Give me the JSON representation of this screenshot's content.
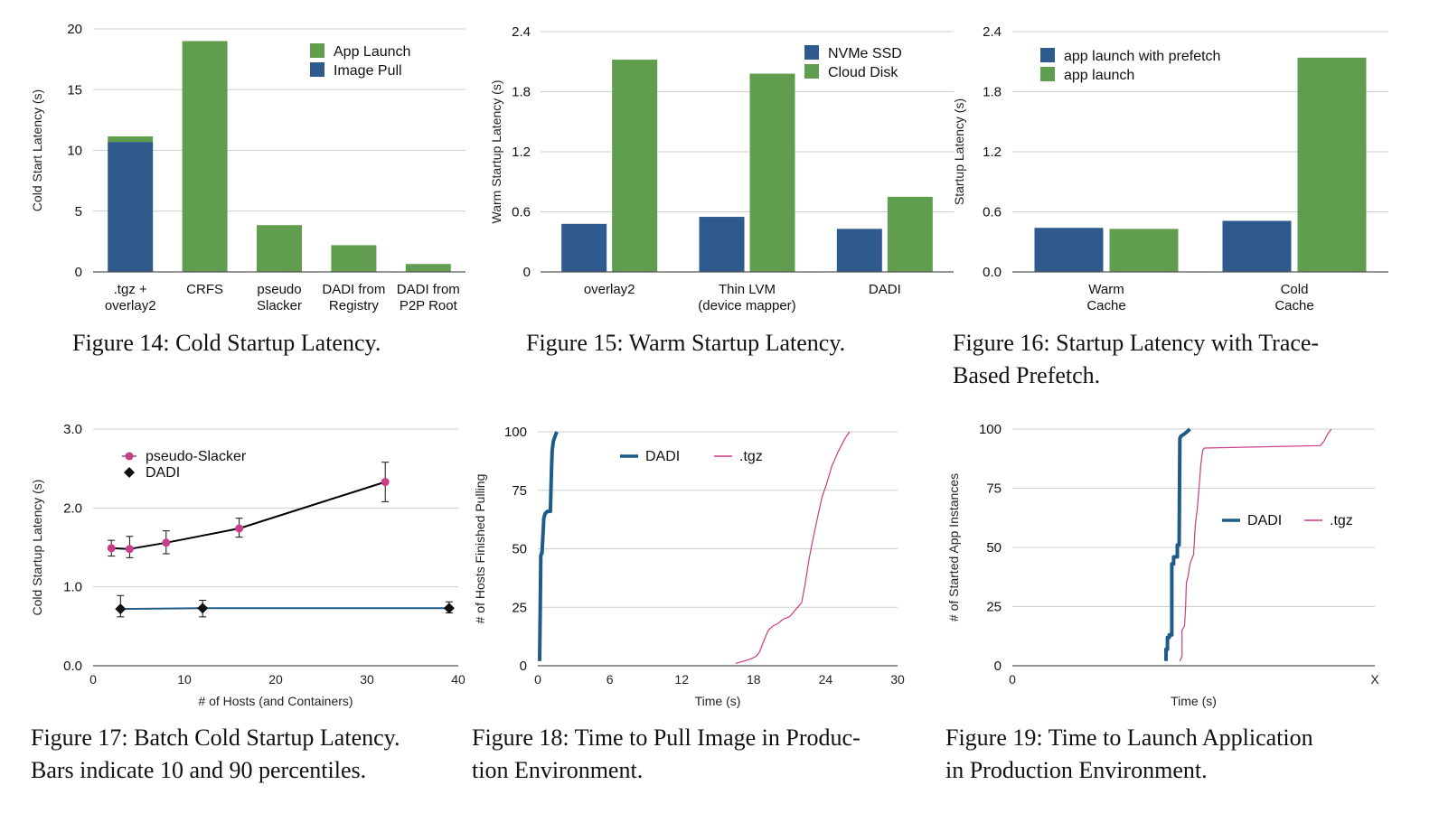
{
  "colors": {
    "blue": "#2f5a8e",
    "green": "#609d4f",
    "dadi_line": "#1e5c87",
    "tgz_line": "#c73e86",
    "slacker_marker": "#c73e86"
  },
  "chart_data": [
    {
      "id": "fig14",
      "type": "bar",
      "stacked": true,
      "caption": "Figure 14: Cold Startup Latency.",
      "ylabel": "Cold Start Latency (s)",
      "xlabel": "",
      "ylim": [
        0,
        20
      ],
      "yticks": [
        "0",
        "5",
        "10",
        "15",
        "20"
      ],
      "categories": [
        ".tgz +\noverlay2",
        "CRFS",
        "pseudo\nSlacker",
        "DADI from\nRegistry",
        "DADI from\nP2P Root"
      ],
      "series": [
        {
          "name": "Image Pull",
          "color": "#2f5a8e",
          "values": [
            10.7,
            0,
            0,
            0,
            0
          ]
        },
        {
          "name": "App Launch",
          "color": "#609d4f",
          "values": [
            0.45,
            19.0,
            3.85,
            2.2,
            0.65
          ]
        }
      ],
      "legend": [
        "App Launch",
        "Image Pull"
      ],
      "legend_position": "top-right"
    },
    {
      "id": "fig15",
      "type": "bar",
      "stacked": false,
      "caption": "Figure 15: Warm Startup Latency.",
      "ylabel": "Warm Startup Latency (s)",
      "xlabel": "",
      "ylim": [
        0,
        2.4
      ],
      "yticks": [
        "0",
        "0.6",
        "1.2",
        "1.8",
        "2.4"
      ],
      "categories": [
        "overlay2",
        "Thin LVM\n(device mapper)",
        "DADI"
      ],
      "series": [
        {
          "name": "NVMe SSD",
          "color": "#2f5a8e",
          "values": [
            0.48,
            0.55,
            0.43
          ]
        },
        {
          "name": "Cloud Disk",
          "color": "#609d4f",
          "values": [
            2.12,
            1.98,
            0.75
          ]
        }
      ],
      "legend": [
        "NVMe SSD",
        "Cloud Disk"
      ],
      "legend_position": "top-right"
    },
    {
      "id": "fig16",
      "type": "bar",
      "stacked": false,
      "caption": "Figure 16: Startup Latency with Trace-\nBased Prefetch.",
      "ylabel": "Startup Latency (s)",
      "xlabel": "",
      "ylim": [
        0,
        2.4
      ],
      "yticks": [
        "0.0",
        "0.6",
        "1.2",
        "1.8",
        "2.4"
      ],
      "categories": [
        "Warm\nCache",
        "Cold\nCache"
      ],
      "series": [
        {
          "name": "app launch with prefetch",
          "color": "#2f5a8e",
          "values": [
            0.44,
            0.51
          ]
        },
        {
          "name": "app launch",
          "color": "#609d4f",
          "values": [
            0.43,
            2.14
          ]
        }
      ],
      "legend": [
        "app launch with prefetch",
        "app launch"
      ],
      "legend_position": "top-left"
    },
    {
      "id": "fig17",
      "type": "line",
      "caption": "Figure 17: Batch Cold Startup Latency.\nBars indicate 10 and 90 percentiles.",
      "ylabel": "Cold Startup Latency (s)",
      "xlabel": "# of Hosts (and Containers)",
      "xlim": [
        0,
        40
      ],
      "ylim": [
        0,
        3.0
      ],
      "xticks": [
        "0",
        "10",
        "20",
        "30",
        "40"
      ],
      "yticks": [
        "0.0",
        "1.0",
        "2.0",
        "3.0"
      ],
      "series": [
        {
          "name": "pseudo-Slacker",
          "color": "#000000",
          "marker": "circle",
          "x": [
            2,
            4,
            8,
            16,
            32
          ],
          "y": [
            1.49,
            1.48,
            1.56,
            1.74,
            2.33
          ],
          "low": [
            1.39,
            1.37,
            1.42,
            1.63,
            2.08
          ],
          "high": [
            1.59,
            1.64,
            1.71,
            1.87,
            2.58
          ]
        },
        {
          "name": "DADI",
          "color": "#1e5c87",
          "marker": "diamond",
          "x": [
            3,
            12,
            39
          ],
          "y": [
            0.72,
            0.73,
            0.73
          ],
          "low": [
            0.62,
            0.62,
            0.67
          ],
          "high": [
            0.89,
            0.83,
            0.81
          ]
        }
      ],
      "legend_position": "top-left"
    },
    {
      "id": "fig18",
      "type": "line",
      "caption": "Figure 18: Time to Pull Image in Produc-\ntion Environment.",
      "ylabel": "# of Hosts Finished Pulling",
      "xlabel": "Time (s)",
      "xlim": [
        0,
        30
      ],
      "ylim": [
        0,
        100
      ],
      "xticks": [
        "0",
        "6",
        "12",
        "18",
        "24",
        "30"
      ],
      "yticks": [
        "0",
        "25",
        "50",
        "75",
        "100"
      ],
      "series": [
        {
          "name": "DADI",
          "color": "#1e5c87",
          "width": 4,
          "x": [
            0.15,
            0.2,
            0.25,
            0.3,
            0.35,
            0.45,
            0.5,
            0.6,
            0.8,
            1.05,
            1.1,
            1.15,
            1.2,
            1.3,
            1.5,
            1.6
          ],
          "y": [
            2,
            25,
            47,
            48,
            48,
            58,
            63,
            65,
            66,
            66,
            76,
            86,
            92,
            96,
            99,
            100
          ]
        },
        {
          "name": ".tgz",
          "color": "#c73e86",
          "width": 1.2,
          "x": [
            16.5,
            17.2,
            17.8,
            18.2,
            18.5,
            18.8,
            19.2,
            19.6,
            20.0,
            20.5,
            21.0,
            21.5,
            22.0,
            22.3,
            22.6,
            22.9,
            23.1,
            23.4,
            23.7,
            24.1,
            24.5,
            25.0,
            25.6,
            26.0
          ],
          "y": [
            1,
            2,
            3,
            4,
            6,
            10,
            15,
            17,
            18,
            20,
            21,
            24,
            27,
            35,
            45,
            53,
            58,
            65,
            72,
            78,
            85,
            91,
            97,
            100
          ]
        }
      ],
      "legend_position": "top"
    },
    {
      "id": "fig19",
      "type": "line",
      "caption": "Figure 19: Time to Launch Application\nin Production Environment.",
      "ylabel": "# of Started App Instances",
      "xlabel": "Time (s)",
      "xlim": [
        0,
        1
      ],
      "ylim": [
        0,
        100
      ],
      "xticks": [
        "0",
        "X"
      ],
      "yticks": [
        "0",
        "25",
        "50",
        "75",
        "100"
      ],
      "series": [
        {
          "name": "DADI",
          "color": "#1e5c87",
          "width": 4,
          "x": [
            0.424,
            0.424,
            0.428,
            0.428,
            0.433,
            0.433,
            0.44,
            0.44,
            0.445,
            0.445,
            0.455,
            0.455,
            0.46,
            0.462,
            0.465,
            0.475,
            0.49
          ],
          "y": [
            2,
            7,
            7,
            12,
            12,
            13,
            13,
            43,
            43,
            46,
            46,
            51,
            51,
            96,
            97,
            98,
            100
          ]
        },
        {
          "name": ".tgz",
          "color": "#c73e86",
          "width": 1.2,
          "x": [
            0.462,
            0.468,
            0.468,
            0.475,
            0.478,
            0.48,
            0.485,
            0.49,
            0.5,
            0.505,
            0.51,
            0.515,
            0.52,
            0.525,
            0.53,
            0.85,
            0.86,
            0.87,
            0.88
          ],
          "y": [
            2,
            4,
            15,
            17,
            25,
            35,
            38,
            43,
            47,
            60,
            66,
            75,
            85,
            91,
            92,
            93,
            95,
            98,
            100
          ]
        }
      ],
      "legend_position": "right-middle"
    }
  ]
}
